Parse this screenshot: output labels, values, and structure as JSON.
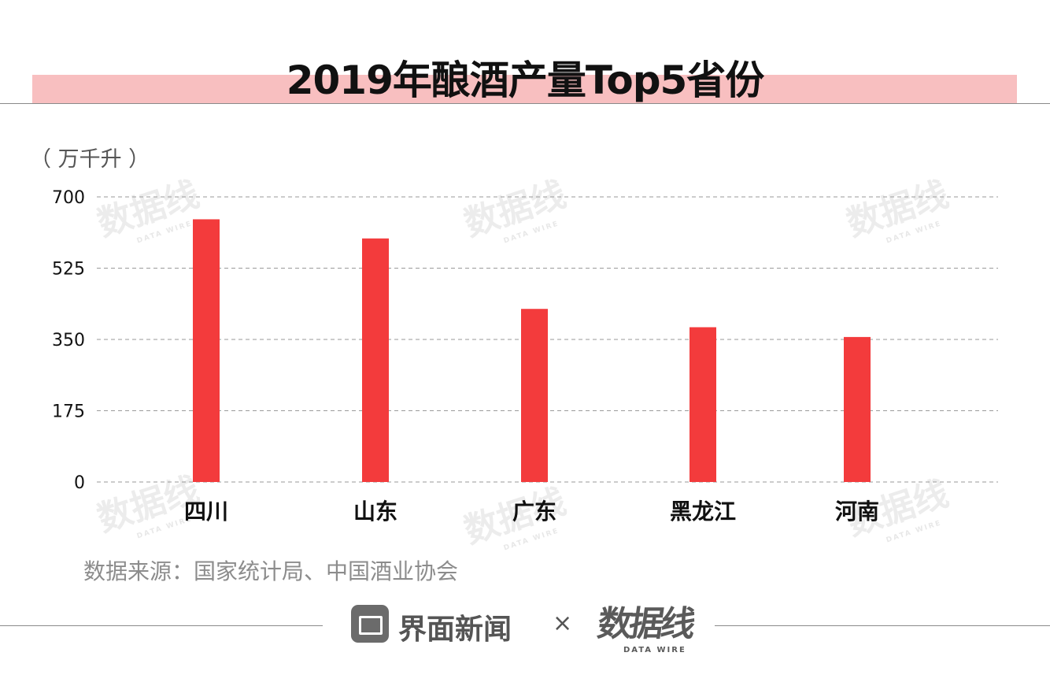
{
  "header": {
    "title": "2019年酿酒产量Top5省份"
  },
  "chart_data": {
    "type": "bar",
    "title": "2019年酿酒产量Top5省份",
    "unit_label": "（ 万千升 ）",
    "categories": [
      "四川",
      "山东",
      "广东",
      "黑龙江",
      "河南"
    ],
    "values": [
      645,
      598,
      425,
      380,
      356
    ],
    "yticks": [
      0,
      175,
      350,
      525,
      700
    ],
    "ylim": [
      0,
      700
    ],
    "grid": true,
    "bar_color": "#f33b3c"
  },
  "footer": {
    "source": "数据来源：国家统计局、中国酒业协会",
    "brand_name": "界面新闻",
    "times": "×",
    "datawire_logo": "数据线",
    "datawire_sub": "DATA WIRE"
  }
}
